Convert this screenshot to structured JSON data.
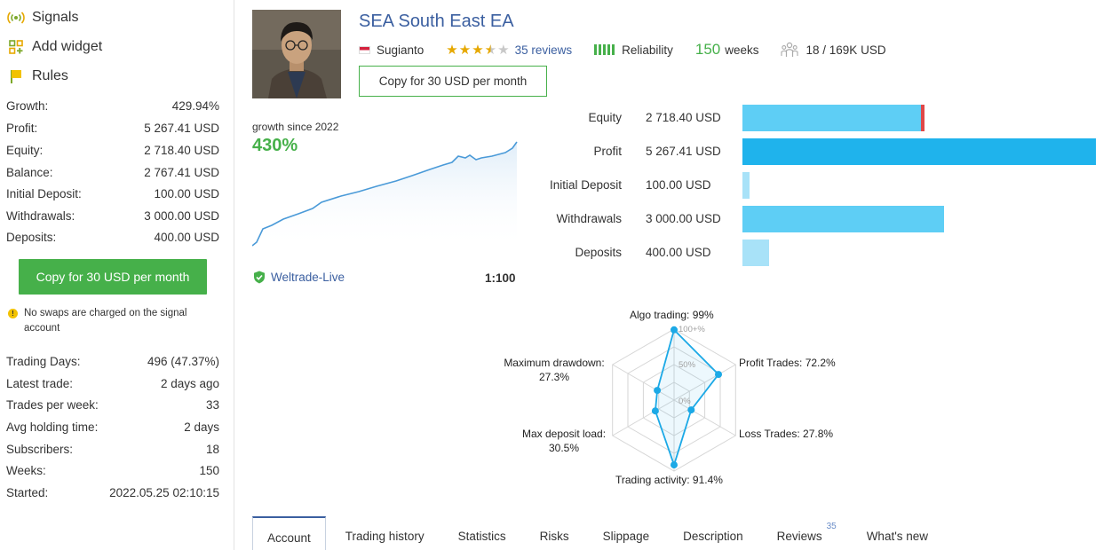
{
  "nav": [
    {
      "label": "Signals",
      "icon": "signal-broadcast-icon"
    },
    {
      "label": "Add widget",
      "icon": "widget-grid-icon"
    },
    {
      "label": "Rules",
      "icon": "flag-icon"
    }
  ],
  "stats_top": [
    {
      "label": "Growth:",
      "value": "429.94%"
    },
    {
      "label": "Profit:",
      "value": "5 267.41 USD"
    },
    {
      "label": "Equity:",
      "value": "2 718.40 USD"
    },
    {
      "label": "Balance:",
      "value": "2 767.41 USD"
    },
    {
      "label": "Initial Deposit:",
      "value": "100.00 USD"
    },
    {
      "label": "Withdrawals:",
      "value": "3 000.00 USD"
    },
    {
      "label": "Deposits:",
      "value": "400.00 USD"
    }
  ],
  "sidebar_copy_button": "Copy for 30 USD per month",
  "notice": "No swaps are charged on the signal account",
  "stats_bottom": [
    {
      "label": "Trading Days:",
      "value": "496 (47.37%)"
    },
    {
      "label": "Latest trade:",
      "value": "2 days ago"
    },
    {
      "label": "Trades per week:",
      "value": "33"
    },
    {
      "label": "Avg holding time:",
      "value": "2 days"
    },
    {
      "label": "Subscribers:",
      "value": "18"
    },
    {
      "label": "Weeks:",
      "value": "150"
    },
    {
      "label": "Started:",
      "value": "2022.05.25 02:10:15"
    }
  ],
  "header": {
    "title": "SEA South East EA",
    "author": "Sugianto",
    "rating": 3.5,
    "reviews": "35 reviews",
    "reliability_label": "Reliability",
    "weeks_value": "150",
    "weeks_label": "weeks",
    "subscribers": "18 / 169K USD",
    "copy_button": "Copy for 30 USD per month"
  },
  "growth": {
    "label": "growth since 2022",
    "value": "430%",
    "broker": "Weltrade-Live",
    "leverage": "1:100",
    "line_color": "#4a9ad8"
  },
  "bars": [
    {
      "label": "Equity",
      "value": "2 718.40 USD",
      "amount": 2718.4,
      "color": "#5ecef5",
      "accent": "#e04848"
    },
    {
      "label": "Profit",
      "value": "5 267.41 USD",
      "amount": 5267.41,
      "color": "#1fb3ec"
    },
    {
      "label": "Initial Deposit",
      "value": "100.00 USD",
      "amount": 100.0,
      "color": "#a8e2f8"
    },
    {
      "label": "Withdrawals",
      "value": "3 000.00 USD",
      "amount": 3000.0,
      "color": "#5ecef5"
    },
    {
      "label": "Deposits",
      "value": "400.00 USD",
      "amount": 400.0,
      "color": "#a8e2f8"
    }
  ],
  "radar": {
    "ring_labels": [
      "100+%",
      "50%",
      "0%"
    ],
    "axes": [
      {
        "label": "Algo trading: 99%",
        "value": 99
      },
      {
        "label": "Profit Trades: 72.2%",
        "value": 72.2
      },
      {
        "label": "Loss Trades: 27.8%",
        "value": 27.8
      },
      {
        "label": "Trading activity: 91.4%",
        "value": 91.4
      },
      {
        "label": "Max deposit load:",
        "label2": "30.5%",
        "value": 30.5
      },
      {
        "label": "Maximum drawdown:",
        "label2": "27.3%",
        "value": 27.3
      }
    ],
    "color": "#1ca9e6"
  },
  "tabs": [
    {
      "label": "Account",
      "active": true
    },
    {
      "label": "Trading history"
    },
    {
      "label": "Statistics"
    },
    {
      "label": "Risks"
    },
    {
      "label": "Slippage"
    },
    {
      "label": "Description"
    },
    {
      "label": "Reviews",
      "badge": "35"
    },
    {
      "label": "What's new"
    }
  ]
}
